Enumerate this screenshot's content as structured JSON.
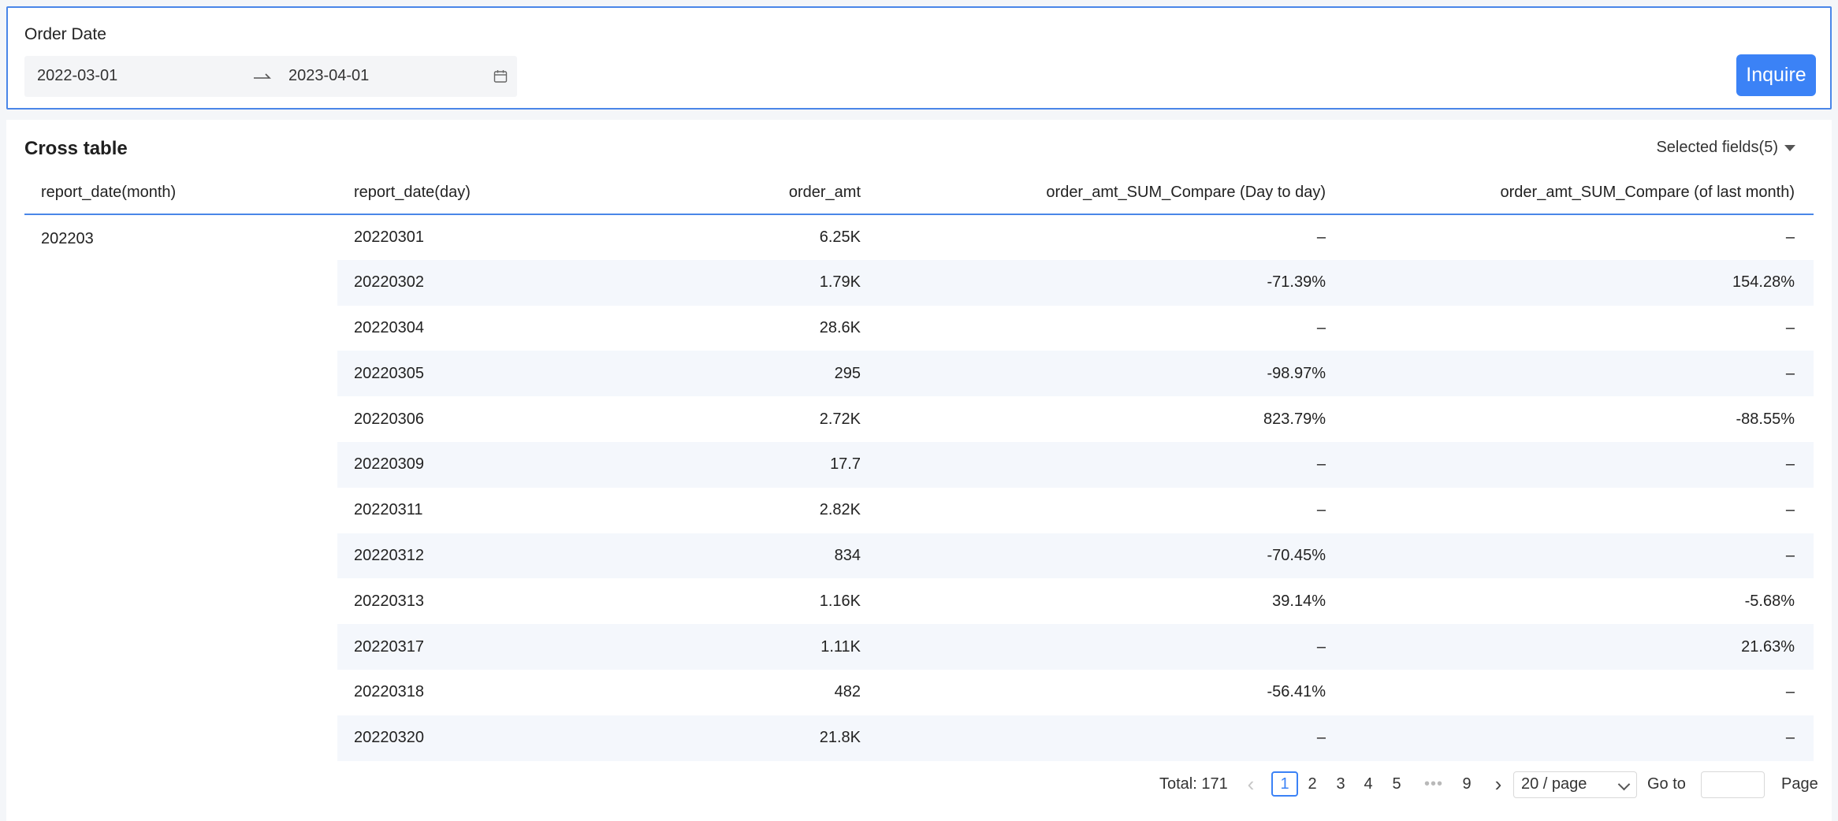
{
  "filter": {
    "label": "Order Date",
    "start_date": "2022-03-01",
    "end_date": "2023-04-01",
    "inquire_label": "Inquire"
  },
  "panel": {
    "title": "Cross table",
    "selected_fields": "Selected fields(5)"
  },
  "table": {
    "headers": [
      "report_date(month)",
      "report_date(day)",
      "order_amt",
      "order_amt_SUM_Compare (Day to day)",
      "order_amt_SUM_Compare (of last month)"
    ],
    "month": "202203",
    "rows": [
      [
        "20220301",
        "6.25K",
        "–",
        "–"
      ],
      [
        "20220302",
        "1.79K",
        "-71.39%",
        "154.28%"
      ],
      [
        "20220304",
        "28.6K",
        "–",
        "–"
      ],
      [
        "20220305",
        "295",
        "-98.97%",
        "–"
      ],
      [
        "20220306",
        "2.72K",
        "823.79%",
        "-88.55%"
      ],
      [
        "20220309",
        "17.7",
        "–",
        "–"
      ],
      [
        "20220311",
        "2.82K",
        "–",
        "–"
      ],
      [
        "20220312",
        "834",
        "-70.45%",
        "–"
      ],
      [
        "20220313",
        "1.16K",
        "39.14%",
        "-5.68%"
      ],
      [
        "20220317",
        "1.11K",
        "–",
        "21.63%"
      ],
      [
        "20220318",
        "482",
        "-56.41%",
        "–"
      ],
      [
        "20220320",
        "21.8K",
        "–",
        "–"
      ]
    ]
  },
  "pagination": {
    "total": "Total: 171",
    "prev": "‹",
    "pages": [
      "1",
      "2",
      "3",
      "4",
      "5"
    ],
    "ellipsis": "•••",
    "last_page": "9",
    "next": "›",
    "page_size": "20 / page",
    "goto_label": "Go to",
    "page_label": "Page"
  }
}
